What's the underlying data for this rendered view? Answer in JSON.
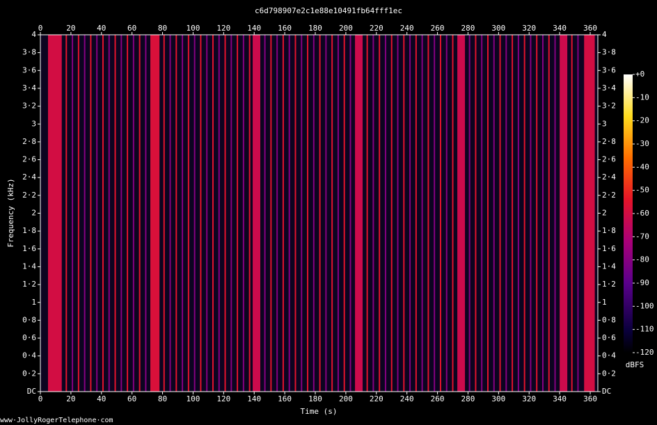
{
  "chart_data": {
    "type": "spectrogram",
    "title": "c6d798907e2c1e88e10491fb64fff1ec",
    "x_label": "Time (s)",
    "y_label": "Frequency (kHz)",
    "footer": "www·JollyRogerTelephone·com",
    "xlim": [
      0,
      365
    ],
    "xticks": [
      0,
      20,
      40,
      60,
      80,
      100,
      120,
      140,
      160,
      180,
      200,
      220,
      240,
      260,
      280,
      300,
      320,
      340,
      360
    ],
    "ylim": [
      0,
      4
    ],
    "yticks": [
      {
        "value": 0,
        "label": "DC"
      },
      {
        "value": 0.2,
        "label": "0·2"
      },
      {
        "value": 0.4,
        "label": "0·4"
      },
      {
        "value": 0.6,
        "label": "0·6"
      },
      {
        "value": 0.8,
        "label": "0·8"
      },
      1,
      {
        "value": 1.2,
        "label": "1·2"
      },
      {
        "value": 1.4,
        "label": "1·4"
      },
      {
        "value": 1.6,
        "label": "1·6"
      },
      {
        "value": 1.8,
        "label": "1·8"
      },
      2,
      {
        "value": 2.2,
        "label": "2·2"
      },
      {
        "value": 2.4,
        "label": "2·4"
      },
      {
        "value": 2.6,
        "label": "2·6"
      },
      {
        "value": 2.8,
        "label": "2·8"
      },
      3,
      {
        "value": 3.2,
        "label": "3·2"
      },
      {
        "value": 3.4,
        "label": "3·4"
      },
      {
        "value": 3.6,
        "label": "3·6"
      },
      {
        "value": 3.8,
        "label": "3·8"
      },
      4
    ],
    "colorbar_label": "dBFS",
    "clim": [
      -120,
      0
    ],
    "cticks": [
      {
        "value": 0,
        "label": "+0"
      },
      -10,
      -20,
      -30,
      -40,
      -50,
      -60,
      -70,
      -80,
      -90,
      -100,
      -110,
      -120
    ],
    "background_color": "#0c0420",
    "bursts": {
      "start": [
        5,
        72,
        139,
        206,
        273,
        340,
        356
      ],
      "end": [
        14,
        78,
        144,
        211,
        278,
        345,
        363
      ],
      "values": [
        -60,
        -58,
        -62,
        -62,
        -62,
        -62,
        -60
      ]
    },
    "tones": {
      "x": [
        17,
        21,
        25,
        29,
        33,
        37,
        41,
        45,
        49,
        53,
        57,
        61,
        65,
        69,
        81,
        85,
        89,
        93,
        97,
        101,
        105,
        109,
        113,
        117,
        121,
        125,
        129,
        133,
        137,
        147,
        151,
        155,
        159,
        163,
        167,
        171,
        175,
        179,
        183,
        187,
        191,
        195,
        199,
        203,
        214,
        218,
        222,
        226,
        230,
        234,
        238,
        242,
        246,
        250,
        254,
        258,
        262,
        266,
        270,
        281,
        285,
        289,
        293,
        297,
        301,
        305,
        309,
        313,
        317,
        321,
        325,
        329,
        333,
        337,
        348,
        352
      ],
      "values": [
        -55,
        -80,
        -55,
        -80,
        -55,
        -80,
        -55,
        -80,
        -55,
        -80,
        -55,
        -80,
        -55,
        -80,
        -55,
        -80,
        -55,
        -80,
        -55,
        -80,
        -55,
        -80,
        -55,
        -80,
        -55,
        -80,
        -55,
        -80,
        -55,
        -80,
        -55,
        -80,
        -55,
        -80,
        -55,
        -80,
        -55,
        -80,
        -55,
        -80,
        -55,
        -80,
        -55,
        -80,
        -55,
        -80,
        -55,
        -80,
        -55,
        -80,
        -55,
        -80,
        -55,
        -80,
        -55,
        -80,
        -55,
        -80,
        -55,
        -80,
        -55,
        -80,
        -55,
        -80,
        -55,
        -80,
        -55,
        -80,
        -55,
        -80,
        -55,
        -80,
        -55,
        -80,
        -55,
        -80
      ]
    }
  }
}
